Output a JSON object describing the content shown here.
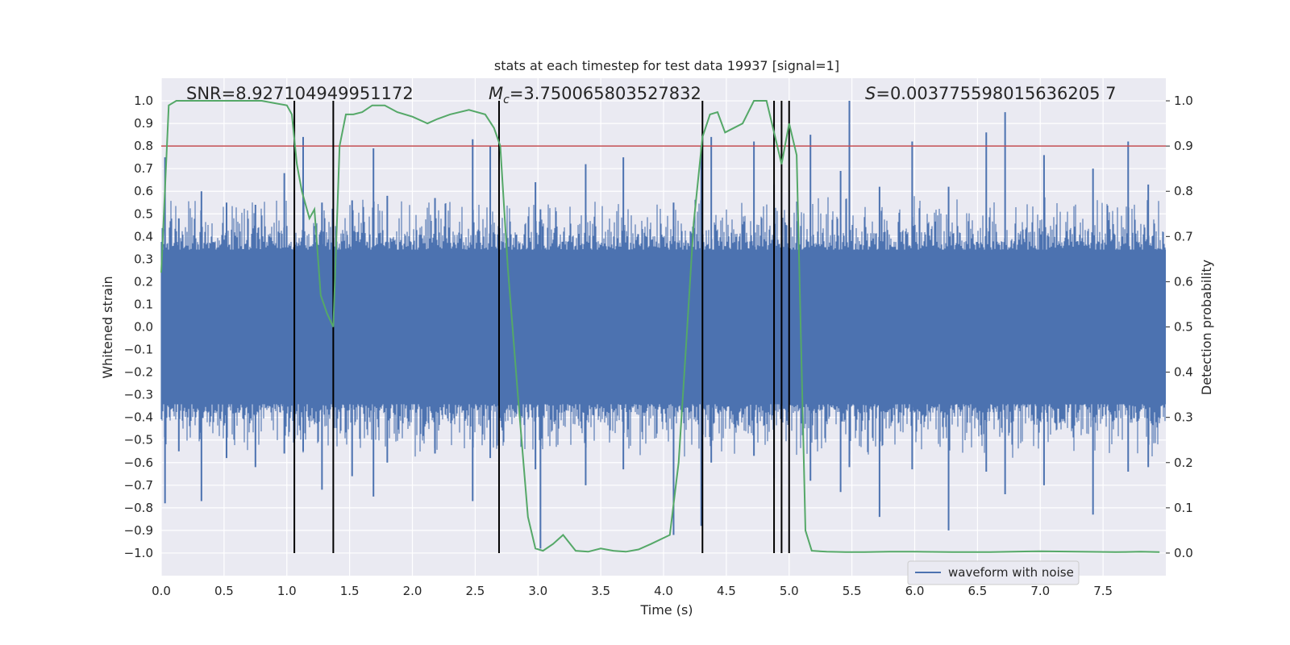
{
  "chart_data": {
    "type": "line",
    "title": "stats at each timestep for test data 19937 [signal=1]",
    "xlabel": "Time (s)",
    "ylabel": "Whitened strain",
    "y2label": "Detection probability",
    "xlim": [
      0,
      8.0
    ],
    "ylim": [
      -1.1,
      1.1
    ],
    "y2lim": [
      -0.05,
      1.05
    ],
    "xticks": [
      0.0,
      0.5,
      1.0,
      1.5,
      2.0,
      2.5,
      3.0,
      3.5,
      4.0,
      4.5,
      5.0,
      5.5,
      6.0,
      6.5,
      7.0,
      7.5
    ],
    "xtick_labels": [
      "0.0",
      "0.5",
      "1.0",
      "1.5",
      "2.0",
      "2.5",
      "3.0",
      "3.5",
      "4.0",
      "4.5",
      "5.0",
      "5.5",
      "6.0",
      "6.5",
      "7.0",
      "7.5"
    ],
    "yticks": [
      1.0,
      0.9,
      0.8,
      0.7,
      0.6,
      0.5,
      0.4,
      0.3,
      0.2,
      0.1,
      0.0,
      -0.1,
      -0.2,
      -0.3,
      -0.4,
      -0.5,
      -0.6,
      -0.7,
      -0.8,
      -0.9,
      -1.0
    ],
    "ytick_labels": [
      "1.0",
      "0.9",
      "0.8",
      "0.7",
      "0.6",
      "0.5",
      "0.4",
      "0.3",
      "0.2",
      "0.1",
      "0.0",
      "−0.1",
      "−0.2",
      "−0.3",
      "−0.4",
      "−0.5",
      "−0.6",
      "−0.7",
      "−0.8",
      "−0.9",
      "−1.0"
    ],
    "y2ticks": [
      1.0,
      0.9,
      0.8,
      0.7,
      0.6,
      0.5,
      0.4,
      0.3,
      0.2,
      0.1,
      0.0
    ],
    "y2tick_labels": [
      "1.0",
      "0.9",
      "0.8",
      "0.7",
      "0.6",
      "0.5",
      "0.4",
      "0.3",
      "0.2",
      "0.1",
      "0.0"
    ],
    "annotations": {
      "snr": "SNR=8.927104949951172",
      "mc_symbol": "M",
      "mc_sub": "c",
      "mc_value": "=3.750065803527832",
      "s_symbol": "S",
      "s_value": "=0.003775598015636205 7"
    },
    "threshold": {
      "value": 0.8,
      "color": "#c44e52"
    },
    "event_lines_x": [
      1.06,
      1.37,
      2.69,
      4.31,
      4.88,
      4.94,
      5.0
    ],
    "waveform": {
      "name": "waveform with noise",
      "color": "#4c72b0",
      "core_envelope": 0.38,
      "spikes": [
        {
          "t": 0.03,
          "lo": -0.78,
          "hi": 0.75
        },
        {
          "t": 0.14,
          "lo": -0.55,
          "hi": 0.48
        },
        {
          "t": 0.32,
          "lo": -0.77,
          "hi": 0.6
        },
        {
          "t": 0.52,
          "lo": -0.58,
          "hi": 0.55
        },
        {
          "t": 0.75,
          "lo": -0.62,
          "hi": 0.54
        },
        {
          "t": 0.98,
          "lo": -0.56,
          "hi": 0.68
        },
        {
          "t": 1.13,
          "lo": -0.55,
          "hi": 0.84
        },
        {
          "t": 1.28,
          "lo": -0.72,
          "hi": 0.55
        },
        {
          "t": 1.52,
          "lo": -0.66,
          "hi": 0.56
        },
        {
          "t": 1.69,
          "lo": -0.75,
          "hi": 0.79
        },
        {
          "t": 1.8,
          "lo": -0.6,
          "hi": 0.58
        },
        {
          "t": 2.18,
          "lo": -0.56,
          "hi": 0.57
        },
        {
          "t": 2.48,
          "lo": -0.77,
          "hi": 0.83
        },
        {
          "t": 2.62,
          "lo": -0.58,
          "hi": 0.8
        },
        {
          "t": 2.98,
          "lo": -0.63,
          "hi": 0.64
        },
        {
          "t": 3.02,
          "lo": -0.98,
          "hi": 0.52
        },
        {
          "t": 3.38,
          "lo": -0.7,
          "hi": 0.72
        },
        {
          "t": 3.68,
          "lo": -0.63,
          "hi": 0.75
        },
        {
          "t": 4.08,
          "lo": -0.92,
          "hi": 0.55
        },
        {
          "t": 4.3,
          "lo": -0.88,
          "hi": 0.8
        },
        {
          "t": 4.38,
          "lo": -0.6,
          "hi": 0.84
        },
        {
          "t": 4.72,
          "lo": -0.57,
          "hi": 0.82
        },
        {
          "t": 4.88,
          "lo": -0.67,
          "hi": 0.63
        },
        {
          "t": 5.17,
          "lo": -0.68,
          "hi": 0.85
        },
        {
          "t": 5.41,
          "lo": -0.73,
          "hi": 0.69
        },
        {
          "t": 5.48,
          "lo": -0.62,
          "hi": 1.0
        },
        {
          "t": 5.72,
          "lo": -0.84,
          "hi": 0.62
        },
        {
          "t": 5.98,
          "lo": -0.63,
          "hi": 0.82
        },
        {
          "t": 6.27,
          "lo": -0.9,
          "hi": 0.62
        },
        {
          "t": 6.57,
          "lo": -0.64,
          "hi": 0.86
        },
        {
          "t": 6.72,
          "lo": -0.74,
          "hi": 0.95
        },
        {
          "t": 7.03,
          "lo": -0.7,
          "hi": 0.76
        },
        {
          "t": 7.42,
          "lo": -0.83,
          "hi": 0.7
        },
        {
          "t": 7.7,
          "lo": -0.64,
          "hi": 0.82
        },
        {
          "t": 7.86,
          "lo": -0.62,
          "hi": 0.63
        }
      ]
    },
    "detection_probability": {
      "name": "detection probability",
      "color": "#55a868",
      "x": [
        0.0,
        0.06,
        0.12,
        0.25,
        0.4,
        0.6,
        0.8,
        0.9,
        1.0,
        1.04,
        1.08,
        1.12,
        1.18,
        1.22,
        1.27,
        1.32,
        1.37,
        1.42,
        1.47,
        1.53,
        1.6,
        1.68,
        1.78,
        1.88,
        2.0,
        2.12,
        2.2,
        2.3,
        2.45,
        2.58,
        2.65,
        2.7,
        2.76,
        2.84,
        2.92,
        2.98,
        3.04,
        3.12,
        3.2,
        3.3,
        3.4,
        3.5,
        3.6,
        3.7,
        3.8,
        3.9,
        4.05,
        4.12,
        4.18,
        4.24,
        4.31,
        4.37,
        4.43,
        4.49,
        4.56,
        4.63,
        4.72,
        4.82,
        4.88,
        4.94,
        5.0,
        5.06,
        5.13,
        5.18,
        5.3,
        5.45,
        5.6,
        5.8,
        6.0,
        6.3,
        6.6,
        7.0,
        7.3,
        7.6,
        7.8,
        7.95
      ],
      "y": [
        0.62,
        0.99,
        1.0,
        1.0,
        1.0,
        1.0,
        1.0,
        0.995,
        0.99,
        0.97,
        0.86,
        0.8,
        0.74,
        0.76,
        0.57,
        0.53,
        0.5,
        0.9,
        0.97,
        0.97,
        0.975,
        0.99,
        0.99,
        0.975,
        0.965,
        0.95,
        0.96,
        0.97,
        0.98,
        0.97,
        0.94,
        0.9,
        0.63,
        0.35,
        0.08,
        0.01,
        0.005,
        0.02,
        0.04,
        0.005,
        0.003,
        0.01,
        0.005,
        0.003,
        0.008,
        0.02,
        0.04,
        0.2,
        0.46,
        0.73,
        0.92,
        0.97,
        0.975,
        0.93,
        0.94,
        0.95,
        1.0,
        1.0,
        0.93,
        0.86,
        0.95,
        0.88,
        0.05,
        0.005,
        0.003,
        0.002,
        0.002,
        0.003,
        0.003,
        0.002,
        0.002,
        0.004,
        0.003,
        0.002,
        0.003,
        0.002
      ]
    },
    "legend": {
      "entries": [
        "waveform with noise"
      ],
      "placement": "lower-right"
    },
    "grid": true
  }
}
